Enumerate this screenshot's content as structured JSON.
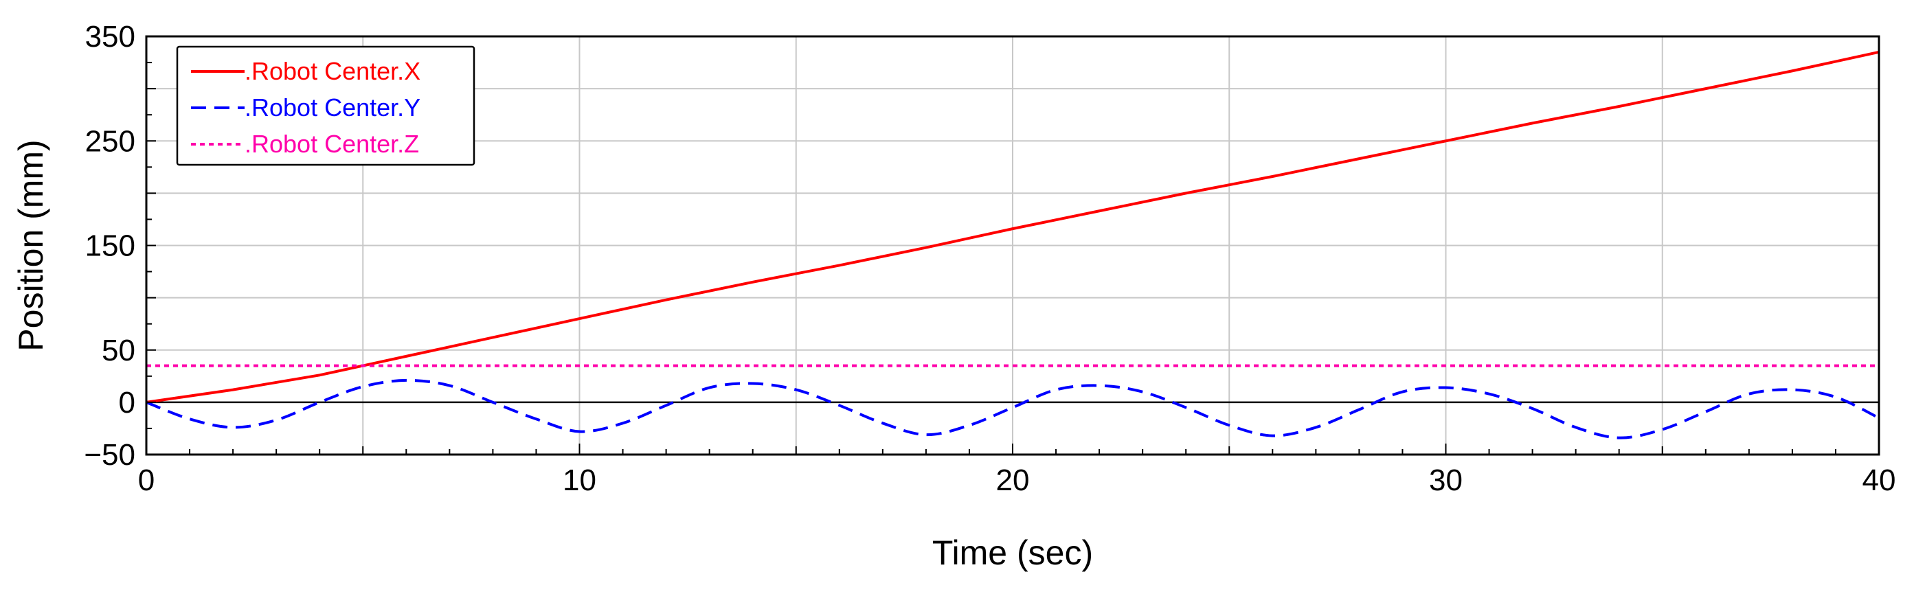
{
  "chart_data": {
    "type": "line",
    "xlabel": "Time (sec)",
    "ylabel": "Position (mm)",
    "xlim": [
      0,
      40
    ],
    "ylim": [
      -50,
      350
    ],
    "x_ticks": [
      0,
      10,
      20,
      30,
      40
    ],
    "x_tick_labels": [
      "0",
      "10",
      "20",
      "30",
      "40"
    ],
    "y_ticks": [
      -50,
      0,
      50,
      150,
      250,
      350
    ],
    "y_tick_labels": [
      "−50",
      "0",
      "50",
      "150",
      "250",
      "350"
    ],
    "grid": true,
    "legend_position": "top-left",
    "series": [
      {
        "name": ".Robot Center.X",
        "color": "#ff0000",
        "style": "solid",
        "x": [
          0,
          2,
          4,
          6,
          8,
          10,
          12,
          14,
          16,
          18,
          20,
          22,
          24,
          26,
          28,
          30,
          32,
          34,
          36,
          38,
          40
        ],
        "values": [
          0,
          12,
          26,
          44,
          62,
          80,
          98,
          115,
          131,
          148,
          166,
          183,
          200,
          216,
          233,
          250,
          267,
          283,
          300,
          317,
          335
        ]
      },
      {
        "name": ".Robot Center.Y",
        "color": "#0000ff",
        "style": "dashed",
        "x": [
          0,
          1,
          2,
          3,
          4,
          5,
          6,
          7,
          8,
          9,
          10,
          11,
          12,
          13,
          14,
          15,
          16,
          17,
          18,
          19,
          20,
          21,
          22,
          23,
          24,
          25,
          26,
          27,
          28,
          29,
          30,
          31,
          32,
          33,
          34,
          35,
          36,
          37,
          38,
          39,
          40
        ],
        "values": [
          0,
          -16,
          -24,
          -17,
          0,
          15,
          21,
          16,
          0,
          -16,
          -28,
          -20,
          -3,
          14,
          18,
          12,
          -3,
          -20,
          -31,
          -22,
          -5,
          12,
          16,
          10,
          -5,
          -22,
          -32,
          -24,
          -7,
          10,
          14,
          8,
          -6,
          -24,
          -34,
          -26,
          -9,
          8,
          12,
          5,
          -15
        ]
      },
      {
        "name": ".Robot Center.Z",
        "color": "#ff00aa",
        "style": "dotted",
        "x": [
          0,
          40
        ],
        "values": [
          35,
          35
        ]
      }
    ]
  }
}
